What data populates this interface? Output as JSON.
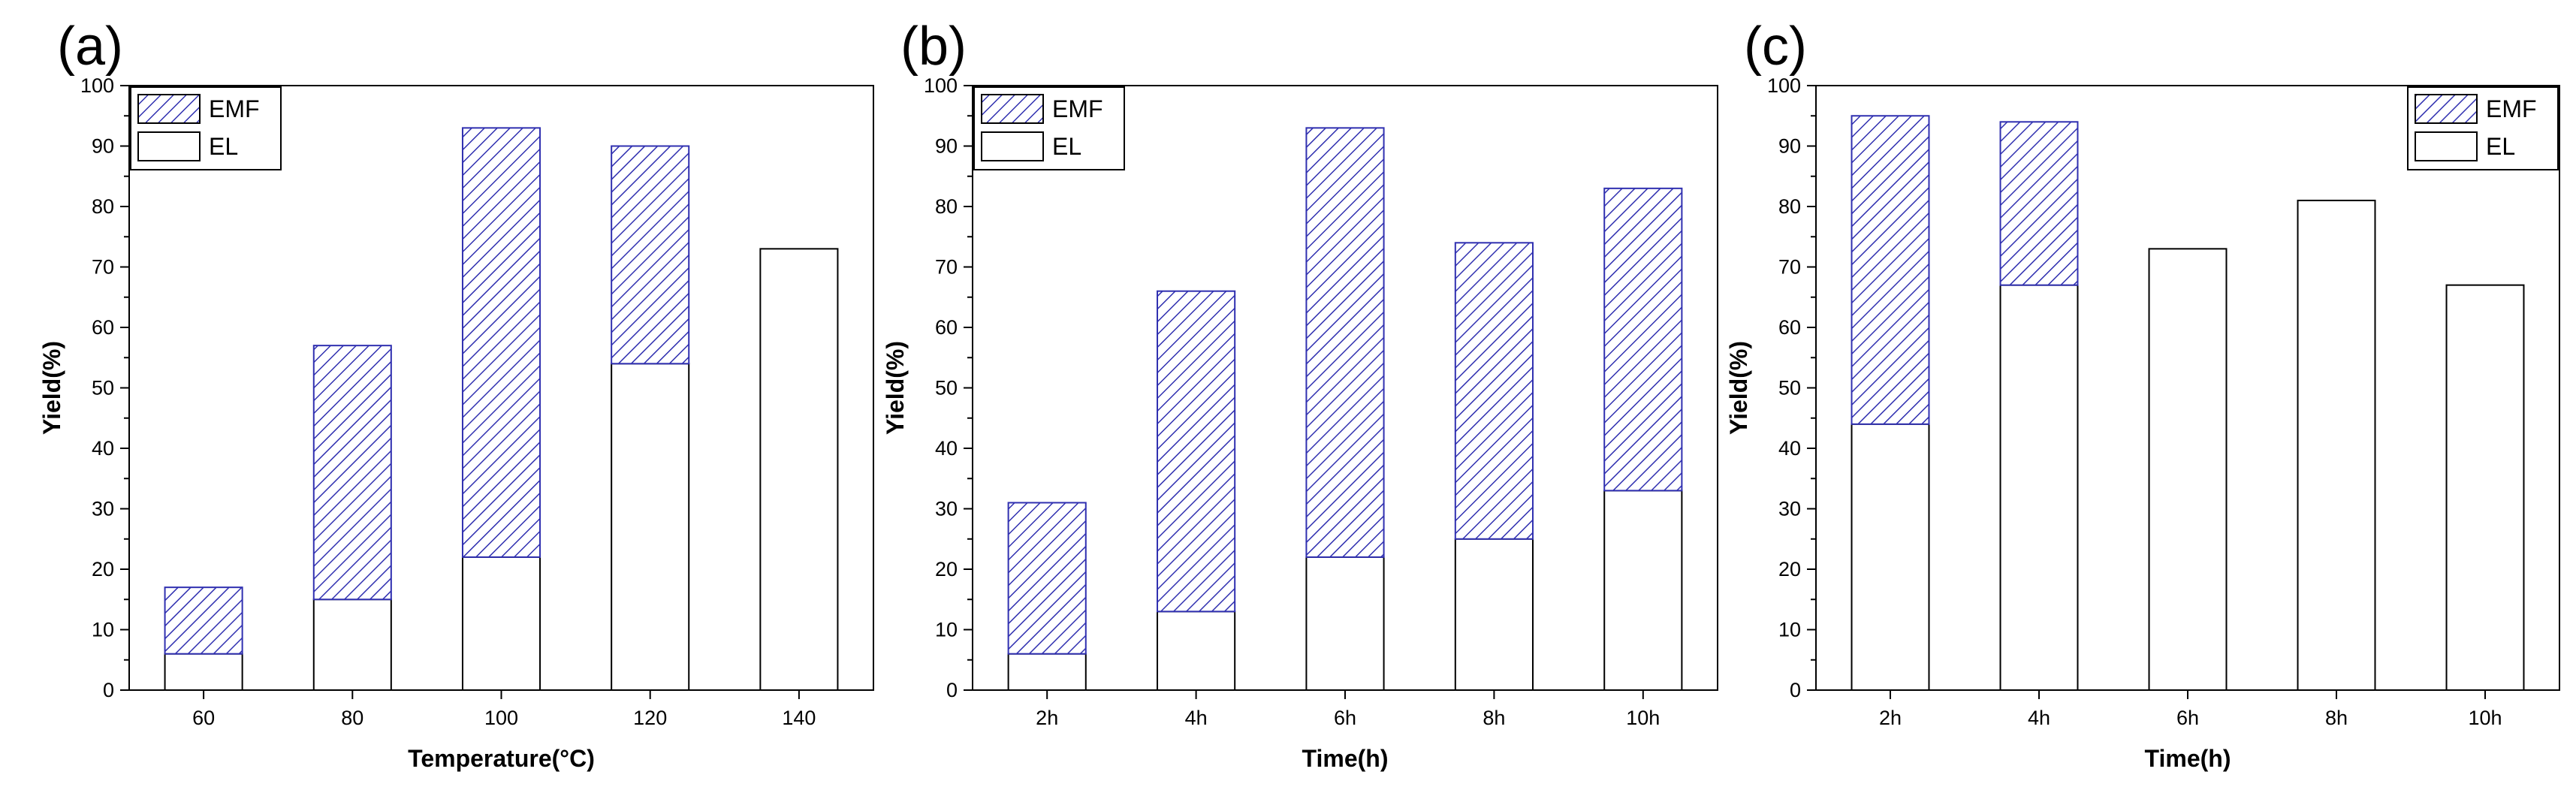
{
  "chart_data": [
    {
      "type": "bar",
      "stacked": true,
      "panel_label": "(a)",
      "categories": [
        "60",
        "80",
        "100",
        "120",
        "140"
      ],
      "series": [
        {
          "name": "EL",
          "values": [
            6,
            15,
            22,
            54,
            73
          ]
        },
        {
          "name": "EMF",
          "values": [
            11,
            42,
            71,
            36,
            0
          ]
        }
      ],
      "totals": [
        17,
        57,
        93,
        90,
        73
      ],
      "xlabel": "Temperature(°C)",
      "ylabel": "Yield(%)",
      "ylim": [
        0,
        100
      ],
      "yticks": [
        "0",
        "10",
        "20",
        "30",
        "40",
        "50",
        "60",
        "70",
        "80",
        "90",
        "100"
      ],
      "legend": {
        "position": "top-left",
        "entries": [
          "EMF",
          "EL"
        ]
      }
    },
    {
      "type": "bar",
      "stacked": true,
      "panel_label": "(b)",
      "categories": [
        "2h",
        "4h",
        "6h",
        "8h",
        "10h"
      ],
      "series": [
        {
          "name": "EL",
          "values": [
            6,
            13,
            22,
            25,
            33
          ]
        },
        {
          "name": "EMF",
          "values": [
            25,
            53,
            71,
            49,
            50
          ]
        }
      ],
      "totals": [
        31,
        66,
        93,
        74,
        83
      ],
      "xlabel": "Time(h)",
      "ylabel": "Yield(%)",
      "ylim": [
        0,
        100
      ],
      "yticks": [
        "0",
        "10",
        "20",
        "30",
        "40",
        "50",
        "60",
        "70",
        "80",
        "90",
        "100"
      ],
      "legend": {
        "position": "top-left",
        "entries": [
          "EMF",
          "EL"
        ]
      }
    },
    {
      "type": "bar",
      "stacked": true,
      "panel_label": "(c)",
      "categories": [
        "2h",
        "4h",
        "6h",
        "8h",
        "10h"
      ],
      "series": [
        {
          "name": "EL",
          "values": [
            44,
            67,
            73,
            81,
            67
          ]
        },
        {
          "name": "EMF",
          "values": [
            51,
            27,
            0,
            0,
            0
          ]
        }
      ],
      "totals": [
        95,
        94,
        73,
        81,
        67
      ],
      "xlabel": "Time(h)",
      "ylabel": "Yield(%)",
      "ylim": [
        0,
        100
      ],
      "yticks": [
        "0",
        "10",
        "20",
        "30",
        "40",
        "50",
        "60",
        "70",
        "80",
        "90",
        "100"
      ],
      "legend": {
        "position": "top-right",
        "entries": [
          "EMF",
          "EL"
        ]
      }
    }
  ],
  "colors": {
    "emf_hatch": "#3030b0",
    "el_fill": "#ffffff",
    "frame": "#000000"
  }
}
